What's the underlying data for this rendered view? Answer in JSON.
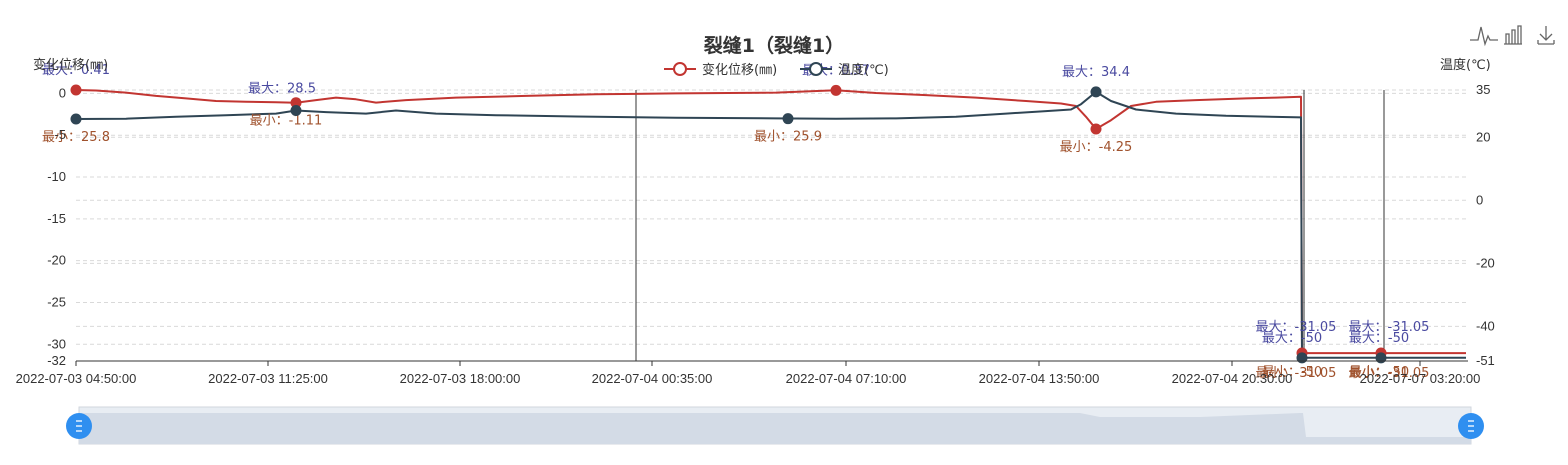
{
  "chart_data": {
    "type": "line",
    "title": "裂缝1（裂缝1）",
    "ylabel_left": "变化位移(㎜)",
    "ylabel_right": "温度(℃)",
    "yticks_left": [
      0,
      -5,
      -10,
      -15,
      -20,
      -25,
      -30,
      -32
    ],
    "yticks_right": [
      35,
      20,
      0,
      -20,
      -40,
      -51
    ],
    "ylim_left": [
      -32,
      0.41
    ],
    "ylim_right": [
      -51,
      35
    ],
    "x_tick_labels": [
      "2022-07-03 04:50:00",
      "2022-07-03 11:25:00",
      "2022-07-03 18:00:00",
      "2022-07-04 00:35:00",
      "2022-07-04 07:10:00",
      "2022-07-04 13:50:00",
      "2022-07-04 20:30:00",
      "2022-07-07 03:20:00"
    ],
    "legend": [
      "变化位移(㎜)",
      "温度(℃)"
    ],
    "legend_position": "top-center",
    "grid": true,
    "series": [
      {
        "name": "变化位移(㎜)",
        "color": "#c23531",
        "axis": "left",
        "points": [
          [
            0,
            0.41
          ],
          [
            20,
            0.35
          ],
          [
            50,
            0.1
          ],
          [
            80,
            -0.3
          ],
          [
            110,
            -0.6
          ],
          [
            140,
            -0.9
          ],
          [
            170,
            -1.0
          ],
          [
            200,
            -1.05
          ],
          [
            220,
            -1.11
          ],
          [
            240,
            -0.8
          ],
          [
            260,
            -0.5
          ],
          [
            280,
            -0.7
          ],
          [
            300,
            -1.1
          ],
          [
            330,
            -0.8
          ],
          [
            380,
            -0.5
          ],
          [
            450,
            -0.3
          ],
          [
            520,
            -0.1
          ],
          [
            600,
            0.0
          ],
          [
            700,
            0.1
          ],
          [
            760,
            0.37
          ],
          [
            800,
            0.05
          ],
          [
            850,
            -0.2
          ],
          [
            900,
            -0.5
          ],
          [
            950,
            -0.9
          ],
          [
            985,
            -1.2
          ],
          [
            1000,
            -1.5
          ],
          [
            1010,
            -2.8
          ],
          [
            1020,
            -4.25
          ],
          [
            1035,
            -3.2
          ],
          [
            1055,
            -1.5
          ],
          [
            1080,
            -1.0
          ],
          [
            1120,
            -0.8
          ],
          [
            1170,
            -0.6
          ],
          [
            1200,
            -0.5
          ],
          [
            1225,
            -0.4
          ],
          [
            1226,
            -31.05
          ],
          [
            1240,
            -31.05
          ],
          [
            1300,
            -31.05
          ],
          [
            1390,
            -31.05
          ]
        ]
      },
      {
        "name": "温度(℃)",
        "color": "#2f4554",
        "axis": "right",
        "points": [
          [
            0,
            25.8
          ],
          [
            50,
            25.9
          ],
          [
            100,
            26.5
          ],
          [
            150,
            27.0
          ],
          [
            200,
            27.5
          ],
          [
            220,
            28.5
          ],
          [
            250,
            28.0
          ],
          [
            290,
            27.5
          ],
          [
            320,
            28.5
          ],
          [
            360,
            27.5
          ],
          [
            420,
            27.0
          ],
          [
            500,
            26.6
          ],
          [
            600,
            26.2
          ],
          [
            700,
            26.0
          ],
          [
            760,
            25.9
          ],
          [
            820,
            26.0
          ],
          [
            880,
            26.5
          ],
          [
            930,
            27.5
          ],
          [
            970,
            28.3
          ],
          [
            995,
            28.8
          ],
          [
            1005,
            30.5
          ],
          [
            1020,
            34.4
          ],
          [
            1035,
            31.5
          ],
          [
            1060,
            28.8
          ],
          [
            1100,
            27.5
          ],
          [
            1150,
            26.8
          ],
          [
            1225,
            26.3
          ],
          [
            1226,
            -50
          ],
          [
            1240,
            -50
          ],
          [
            1300,
            -50
          ],
          [
            1390,
            -50
          ]
        ]
      }
    ],
    "markers": {
      "disp": {
        "max_label": "最大：0.41",
        "min_label": "最小：-1.11",
        "max2_label": "最大：0.37",
        "min2_label": "最小：-4.25",
        "end_max_label": "最大：-31.05",
        "end_min_label": "最小：-31.05",
        "end2_max_label": "最大：-31.05",
        "end2_min_label": "最小：-31.05"
      },
      "temp": {
        "max_label": "最大：28.5",
        "min_label": "最小：25.8",
        "min2_label": "最小：25.9",
        "max2_label": "最大：34.4",
        "end_max_label": "最大：-50",
        "end_min_label": "最小：-50",
        "end2_max_label": "最大：-50",
        "end2_min_label": "最小：-50"
      }
    },
    "vertical_lines_x": [
      560,
      1228,
      1308
    ]
  },
  "toolbox": {
    "line_icon": "line-chart-icon",
    "bar_icon": "bar-chart-icon",
    "save_icon": "download-icon"
  },
  "colors": {
    "disp": "#c23531",
    "temp": "#2f4554",
    "grid": "#d9d9d9",
    "slider_fill": "#d3dbe6",
    "slider_handle": "#2f8ff0"
  }
}
